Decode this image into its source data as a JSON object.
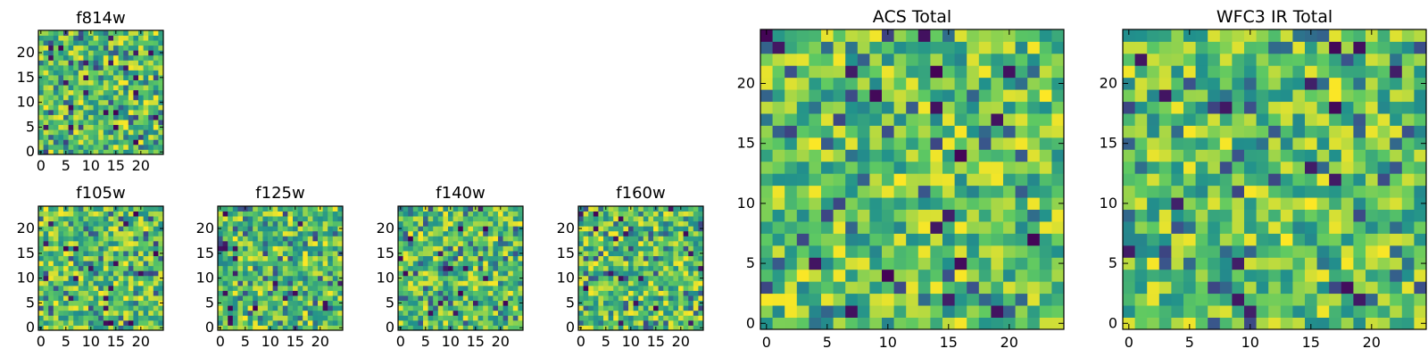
{
  "chart_data": [
    {
      "type": "heatmap",
      "title": "f814w",
      "rows": 25,
      "cols": 25,
      "seed": 814,
      "xticks": [
        0,
        5,
        10,
        15,
        20
      ],
      "yticks": [
        0,
        5,
        10,
        15,
        20
      ],
      "colormap": "viridis"
    },
    {
      "type": "heatmap",
      "title": "f105w",
      "rows": 25,
      "cols": 25,
      "seed": 105,
      "xticks": [
        0,
        5,
        10,
        15,
        20
      ],
      "yticks": [
        0,
        5,
        10,
        15,
        20
      ],
      "colormap": "viridis"
    },
    {
      "type": "heatmap",
      "title": "f125w",
      "rows": 25,
      "cols": 25,
      "seed": 125,
      "xticks": [
        0,
        5,
        10,
        15,
        20
      ],
      "yticks": [
        0,
        5,
        10,
        15,
        20
      ],
      "colormap": "viridis"
    },
    {
      "type": "heatmap",
      "title": "f140w",
      "rows": 25,
      "cols": 25,
      "seed": 140,
      "xticks": [
        0,
        5,
        10,
        15,
        20
      ],
      "yticks": [
        0,
        5,
        10,
        15,
        20
      ],
      "colormap": "viridis"
    },
    {
      "type": "heatmap",
      "title": "f160w",
      "rows": 25,
      "cols": 25,
      "seed": 160,
      "xticks": [
        0,
        5,
        10,
        15,
        20
      ],
      "yticks": [
        0,
        5,
        10,
        15,
        20
      ],
      "colormap": "viridis"
    },
    {
      "type": "heatmap",
      "title": "ACS Total",
      "rows": 25,
      "cols": 25,
      "seed": 901,
      "xticks": [
        0,
        5,
        10,
        15,
        20
      ],
      "yticks": [
        0,
        5,
        10,
        15,
        20
      ],
      "colormap": "viridis"
    },
    {
      "type": "heatmap",
      "title": "WFC3 IR Total",
      "rows": 25,
      "cols": 25,
      "seed": 902,
      "xticks": [
        0,
        5,
        10,
        15,
        20
      ],
      "yticks": [
        0,
        5,
        10,
        15,
        20
      ],
      "colormap": "viridis"
    }
  ],
  "colors": {
    "viridis": [
      "#440154",
      "#3b528b",
      "#21918c",
      "#5ec962",
      "#fde725"
    ],
    "axis": "#000000",
    "background": "#ffffff"
  }
}
